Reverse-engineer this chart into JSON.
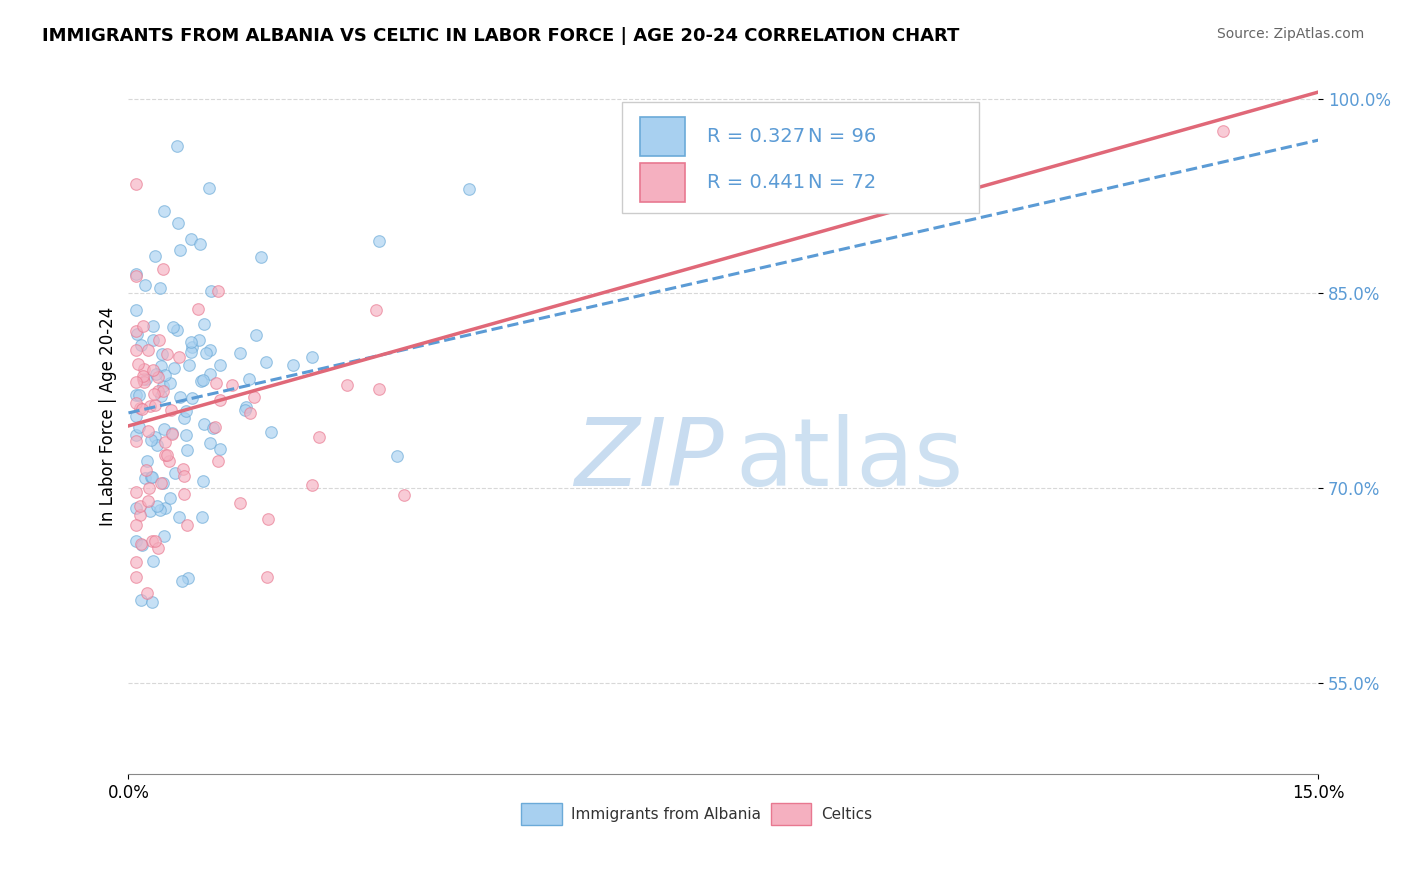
{
  "title": "IMMIGRANTS FROM ALBANIA VS CELTIC IN LABOR FORCE | AGE 20-24 CORRELATION CHART",
  "source": "Source: ZipAtlas.com",
  "ylabel": "In Labor Force | Age 20-24",
  "xlim": [
    0.0,
    0.15
  ],
  "ylim": [
    0.48,
    1.03
  ],
  "xticks": [
    0.0,
    0.15
  ],
  "xticklabels": [
    "0.0%",
    "15.0%"
  ],
  "yticks": [
    0.55,
    0.7,
    0.85,
    1.0
  ],
  "yticklabels": [
    "55.0%",
    "70.0%",
    "85.0%",
    "100.0%"
  ],
  "legend_r_albania": "R = 0.327",
  "legend_n_albania": "N = 96",
  "legend_r_celtic": "R = 0.441",
  "legend_n_celtic": "N = 72",
  "color_albania": "#A8D0F0",
  "color_celtic": "#F5B0C0",
  "color_albania_edge": "#6BAAD8",
  "color_celtic_edge": "#E87890",
  "color_albania_line": "#5B9BD5",
  "color_celtic_line": "#E06878",
  "watermark_text": "ZIPatlas",
  "watermark_color": "#D8EAF5",
  "background_color": "#ffffff",
  "grid_color": "#d8d8d8",
  "scatter_alpha": 0.65,
  "scatter_size": 70,
  "title_fontsize": 13,
  "axis_label_fontsize": 12,
  "tick_fontsize": 12,
  "legend_fontsize": 14,
  "alb_line_y0": 0.758,
  "alb_line_y1": 0.968,
  "cel_line_y0": 0.748,
  "cel_line_y1": 1.005
}
